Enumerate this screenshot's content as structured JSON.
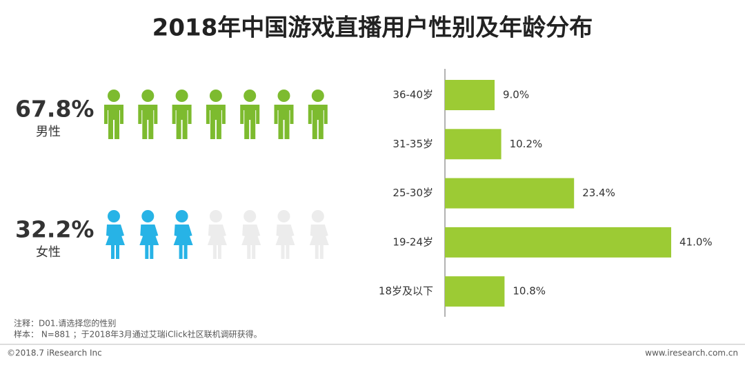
{
  "title": "2018年中国游戏直播用户性别及年龄分布",
  "chart_data": [
    {
      "type": "pictograph",
      "icons": 7,
      "series": [
        {
          "name": "男性",
          "values": [
            67.8
          ],
          "value_labels": [
            "67.8%"
          ],
          "filled": 7,
          "color": "#7dbb2f",
          "shape": "male"
        },
        {
          "name": "女性",
          "values": [
            32.2
          ],
          "value_labels": [
            "32.2%"
          ],
          "filled": 3,
          "color": "#27b3e6",
          "shape": "female"
        }
      ],
      "empty_color": "#ececec"
    },
    {
      "type": "bar",
      "orientation": "horizontal",
      "categories": [
        "36-40岁",
        "31-35岁",
        "25-30岁",
        "19-24岁",
        "18岁及以下"
      ],
      "values": [
        9.0,
        10.2,
        23.4,
        41.0,
        10.8
      ],
      "value_labels": [
        "9.0%",
        "10.2%",
        "23.4%",
        "41.0%",
        "10.8%"
      ],
      "color": "#9ccb34",
      "xlim": [
        0,
        50
      ]
    }
  ],
  "notes": [
    "注释：D01.请选择您的性别",
    "样本： N=881 ；于2018年3月通过艾瑞iClick社区联机调研获得。"
  ],
  "footer": {
    "left": "©2018.7 iResearch Inc",
    "right": "www.iresearch.com.cn"
  }
}
